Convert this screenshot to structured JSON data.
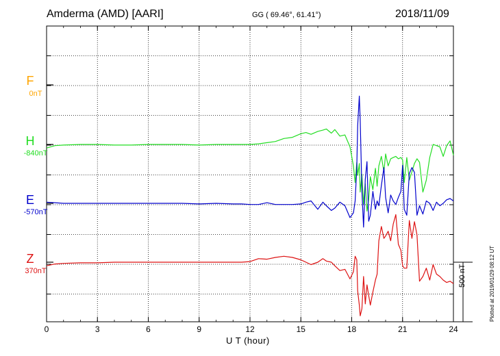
{
  "header": {
    "station": "Amderma (AMD)  [AARI]",
    "coordinates": "GG ( 69.46°,  61.41°)",
    "date": "2018/11/09"
  },
  "side": {
    "plotted_at": "Plotted at 2019/01/29 08:12 UT",
    "scale_label": "500 nT"
  },
  "colors": {
    "F": "#ffa500",
    "H": "#22dd22",
    "E": "#0000cc",
    "Z": "#dd1111"
  },
  "chart_data": {
    "type": "line",
    "title": "",
    "xlabel": "U T (hour)",
    "ylabel": "",
    "xlim": [
      0,
      24
    ],
    "x_ticks": [
      "0",
      "3",
      "6",
      "9",
      "12",
      "15",
      "18",
      "21",
      "24"
    ],
    "grid": true,
    "scale_bar_nT": 500,
    "components": [
      {
        "name": "F",
        "baseline_label": "0nT",
        "values": []
      },
      {
        "name": "H",
        "baseline_label": "-840nT"
      },
      {
        "name": "E",
        "baseline_label": "-570nT"
      },
      {
        "name": "Z",
        "baseline_label": "370nT"
      }
    ],
    "x": [
      0,
      0.5,
      1,
      2,
      3,
      4,
      5,
      6,
      7,
      8,
      9,
      10,
      11,
      11.5,
      12,
      12.5,
      13,
      13.5,
      14,
      14.5,
      15,
      15.3,
      15.6,
      16,
      16.3,
      16.5,
      16.8,
      17,
      17.3,
      17.6,
      17.9,
      18.1,
      18.2,
      18.3,
      18.35,
      18.45,
      18.5,
      18.6,
      18.7,
      18.8,
      18.9,
      19,
      19.1,
      19.25,
      19.4,
      19.5,
      19.6,
      19.75,
      19.9,
      20,
      20.15,
      20.3,
      20.45,
      20.6,
      20.75,
      20.9,
      21,
      21.1,
      21.25,
      21.4,
      21.55,
      21.7,
      21.85,
      22,
      22.2,
      22.4,
      22.6,
      22.8,
      23,
      23.2,
      23.4,
      23.6,
      23.8,
      24
    ],
    "series": [
      {
        "name": "H",
        "values": [
          -30,
          -10,
          -5,
          0,
          0,
          -5,
          -5,
          0,
          0,
          0,
          -5,
          0,
          0,
          0,
          0,
          5,
          15,
          25,
          50,
          60,
          90,
          100,
          85,
          110,
          120,
          130,
          95,
          125,
          70,
          80,
          -20,
          -180,
          -320,
          -150,
          -260,
          -160,
          -400,
          -250,
          -500,
          -330,
          -560,
          -460,
          -270,
          -380,
          -200,
          -350,
          -180,
          -100,
          -230,
          -80,
          -180,
          -120,
          -110,
          -100,
          -120,
          -110,
          -130,
          -320,
          -110,
          -300,
          -230,
          -160,
          -120,
          -150,
          -400,
          -300,
          -110,
          0,
          -10,
          -20,
          -100,
          -10,
          30,
          -90
        ]
      },
      {
        "name": "E",
        "values": [
          10,
          5,
          0,
          0,
          0,
          0,
          0,
          0,
          0,
          0,
          -5,
          0,
          -5,
          -5,
          -10,
          -10,
          5,
          -10,
          -10,
          -10,
          -5,
          10,
          20,
          -50,
          10,
          -20,
          -60,
          -40,
          10,
          -20,
          -120,
          -80,
          20,
          300,
          650,
          900,
          700,
          100,
          -200,
          200,
          350,
          -150,
          -100,
          100,
          -50,
          20,
          -20,
          150,
          300,
          50,
          -80,
          70,
          20,
          -10,
          50,
          100,
          320,
          -50,
          -100,
          250,
          300,
          260,
          -100,
          -20,
          -90,
          20,
          0,
          -60,
          10,
          -20,
          0,
          30,
          40,
          20
        ]
      },
      {
        "name": "Z",
        "values": [
          -30,
          -15,
          -10,
          -5,
          -5,
          0,
          0,
          0,
          0,
          0,
          0,
          0,
          0,
          0,
          5,
          30,
          25,
          40,
          50,
          40,
          20,
          0,
          -20,
          0,
          30,
          10,
          0,
          -30,
          -70,
          -60,
          -140,
          -80,
          50,
          20,
          -240,
          -360,
          -450,
          -390,
          -120,
          -350,
          -190,
          -280,
          -360,
          -250,
          -150,
          -100,
          180,
          300,
          200,
          220,
          260,
          180,
          320,
          400,
          150,
          100,
          -30,
          -50,
          -50,
          350,
          200,
          340,
          230,
          -160,
          -120,
          -50,
          -150,
          -20,
          -100,
          -120,
          -150,
          -170,
          -160,
          -180
        ]
      }
    ]
  }
}
